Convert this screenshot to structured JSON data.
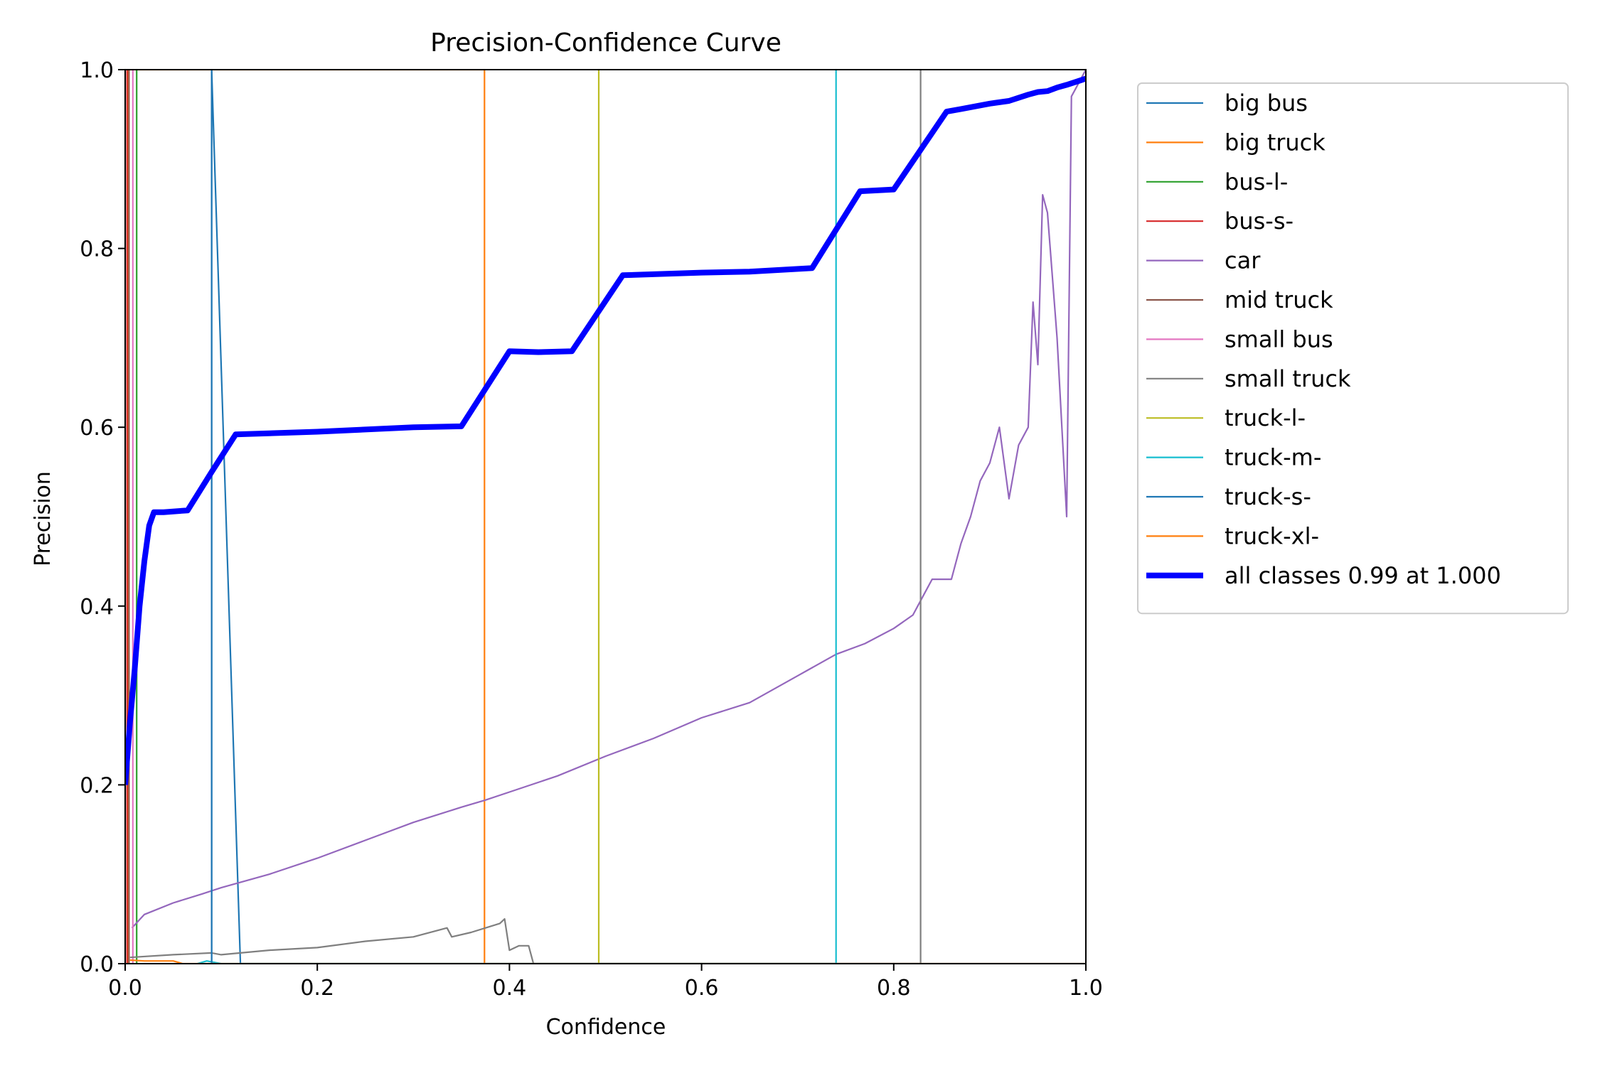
{
  "chart_data": {
    "type": "line",
    "title": "Precision-Confidence Curve",
    "xlabel": "Confidence",
    "ylabel": "Precision",
    "xlim": [
      0,
      1
    ],
    "ylim": [
      0,
      1
    ],
    "x_ticks": [
      "0.0",
      "0.2",
      "0.4",
      "0.6",
      "0.8",
      "1.0"
    ],
    "y_ticks": [
      "0.0",
      "0.2",
      "0.4",
      "0.6",
      "0.8",
      "1.0"
    ],
    "grid": false,
    "legend_position": "outside-right",
    "series": [
      {
        "name": "big bus",
        "color": "#1f77b4",
        "x": [
          0.09,
          0.09,
          0.12,
          1.0
        ],
        "y": [
          0.0,
          1.0,
          0.0,
          0.0
        ]
      },
      {
        "name": "big truck",
        "color": "#ff7f0e",
        "x": [
          0.003,
          0.003,
          0.374,
          0.374
        ],
        "y": [
          0.0,
          1.0,
          1.0,
          0.0
        ]
      },
      {
        "name": "bus-l-",
        "color": "#2ca02c",
        "x": [
          0.012,
          0.012
        ],
        "y": [
          0.0,
          1.0
        ]
      },
      {
        "name": "bus-s-",
        "color": "#d62728",
        "x": [
          0.002,
          0.002
        ],
        "y": [
          0.0,
          1.0
        ]
      },
      {
        "name": "car",
        "color": "#9467bd",
        "x": [
          0.007,
          0.02,
          0.05,
          0.08,
          0.1,
          0.15,
          0.2,
          0.25,
          0.3,
          0.35,
          0.375,
          0.4,
          0.45,
          0.5,
          0.55,
          0.6,
          0.65,
          0.7,
          0.74,
          0.77,
          0.8,
          0.82,
          0.83,
          0.84,
          0.86,
          0.87,
          0.88,
          0.89,
          0.9,
          0.91,
          0.92,
          0.93,
          0.94,
          0.945,
          0.95,
          0.955,
          0.96,
          0.97,
          0.98,
          0.985,
          0.99,
          0.995,
          1.0
        ],
        "y": [
          0.04,
          0.055,
          0.068,
          0.078,
          0.085,
          0.1,
          0.118,
          0.138,
          0.158,
          0.175,
          0.183,
          0.192,
          0.21,
          0.232,
          0.252,
          0.275,
          0.292,
          0.322,
          0.346,
          0.358,
          0.375,
          0.39,
          0.41,
          0.43,
          0.43,
          0.47,
          0.5,
          0.54,
          0.56,
          0.6,
          0.52,
          0.58,
          0.6,
          0.74,
          0.67,
          0.86,
          0.84,
          0.7,
          0.5,
          0.97,
          0.98,
          0.99,
          1.0
        ]
      },
      {
        "name": "mid truck",
        "color": "#8c564b",
        "x": [
          0.004,
          0.004
        ],
        "y": [
          0.0,
          1.0
        ]
      },
      {
        "name": "small bus",
        "color": "#e377c2",
        "x": [
          0.008,
          0.008
        ],
        "y": [
          0.0,
          1.0
        ]
      },
      {
        "name": "small truck",
        "color": "#7f7f7f",
        "x": [
          0.005,
          0.05,
          0.09,
          0.1,
          0.15,
          0.2,
          0.25,
          0.3,
          0.335,
          0.34,
          0.36,
          0.39,
          0.395,
          0.4,
          0.41,
          0.42,
          0.425,
          0.43,
          0.828,
          0.828
        ],
        "y": [
          0.007,
          0.01,
          0.012,
          0.01,
          0.015,
          0.018,
          0.025,
          0.03,
          0.04,
          0.03,
          0.035,
          0.045,
          0.05,
          0.015,
          0.02,
          0.02,
          0.0,
          0.0,
          0.0,
          1.0
        ]
      },
      {
        "name": "truck-l-",
        "color": "#bcbd22",
        "x": [
          0.493,
          0.493
        ],
        "y": [
          0.0,
          1.0
        ]
      },
      {
        "name": "truck-m-",
        "color": "#17becf",
        "x": [
          0.075,
          0.085,
          0.1,
          0.74,
          0.74
        ],
        "y": [
          0.0,
          0.003,
          0.0,
          0.0,
          1.0
        ]
      },
      {
        "name": "truck-s-",
        "color": "#1f77b4",
        "x": [
          0.09,
          0.09
        ],
        "y": [
          0.0,
          1.0
        ]
      },
      {
        "name": "truck-xl-",
        "color": "#ff7f0e",
        "x": [
          0.005,
          0.02,
          0.05,
          0.06,
          1.0
        ],
        "y": [
          0.004,
          0.003,
          0.003,
          0.0,
          0.0
        ]
      },
      {
        "name": "all classes 0.99 at 1.000",
        "color": "#0000ff",
        "bold": true,
        "x": [
          0.0,
          0.005,
          0.01,
          0.015,
          0.02,
          0.025,
          0.03,
          0.035,
          0.04,
          0.065,
          0.09,
          0.115,
          0.2,
          0.3,
          0.35,
          0.4,
          0.43,
          0.465,
          0.518,
          0.6,
          0.65,
          0.715,
          0.765,
          0.8,
          0.855,
          0.87,
          0.9,
          0.92,
          0.94,
          0.95,
          0.96,
          0.97,
          0.98,
          1.0
        ],
        "y": [
          0.2,
          0.27,
          0.33,
          0.4,
          0.45,
          0.49,
          0.505,
          0.505,
          0.505,
          0.507,
          0.55,
          0.592,
          0.595,
          0.6,
          0.601,
          0.685,
          0.684,
          0.685,
          0.77,
          0.773,
          0.774,
          0.778,
          0.864,
          0.866,
          0.953,
          0.956,
          0.962,
          0.965,
          0.972,
          0.975,
          0.976,
          0.98,
          0.983,
          0.99
        ]
      }
    ]
  }
}
